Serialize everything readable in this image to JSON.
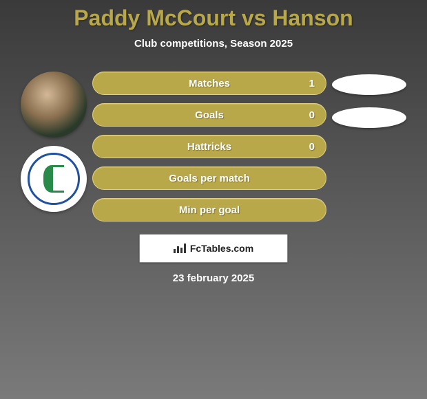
{
  "title": "Paddy McCourt vs Hanson",
  "subtitle": "Club competitions, Season 2025",
  "stats": [
    {
      "label": "Matches",
      "value": "1",
      "show_value": true,
      "show_pill": true
    },
    {
      "label": "Goals",
      "value": "0",
      "show_value": true,
      "show_pill": true
    },
    {
      "label": "Hattricks",
      "value": "0",
      "show_value": true,
      "show_pill": false
    },
    {
      "label": "Goals per match",
      "value": "",
      "show_value": false,
      "show_pill": false
    },
    {
      "label": "Min per goal",
      "value": "",
      "show_value": false,
      "show_pill": false
    }
  ],
  "footer_brand": "FcTables.com",
  "date": "23 february 2025",
  "colors": {
    "accent": "#b8a849",
    "pill_bg": "#ffffff",
    "text": "#ffffff"
  }
}
